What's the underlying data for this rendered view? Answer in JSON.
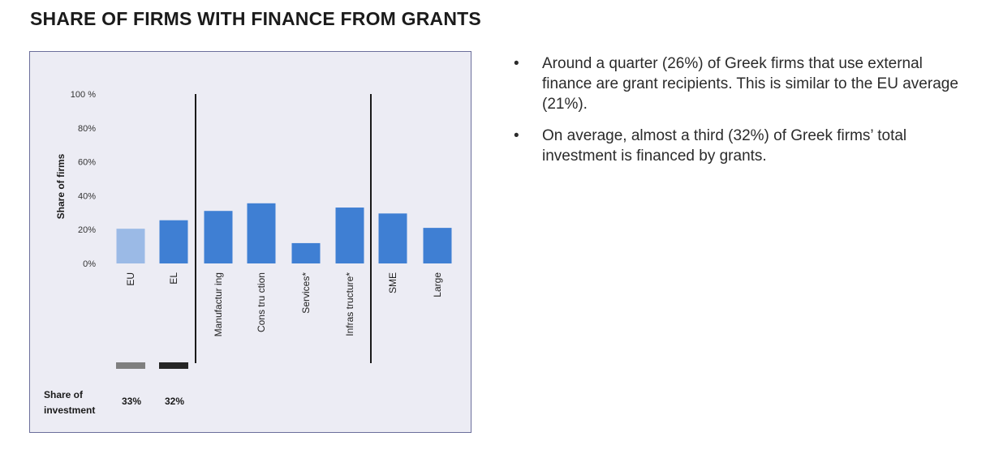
{
  "title": "SHARE OF FIRMS WITH FINANCE FROM GRANTS",
  "bullets": [
    "Around a quarter (26%) of Greek firms that use external finance are grant recipients. This is similar to the EU average (21%).",
    "On average, almost a third (32%) of Greek firms’ total investment is financed by grants."
  ],
  "chart_data": {
    "type": "bar",
    "ylabel": "Share of firms",
    "ylim": [
      0,
      100
    ],
    "yticks": [
      0,
      20,
      40,
      60,
      80,
      100
    ],
    "ytick_labels": [
      "0%",
      "20%",
      "40%",
      "60%",
      "80%",
      "100 %"
    ],
    "categories": [
      "EU",
      "EL",
      "Manufacturing",
      "Construction",
      "Services*",
      "Infrastructure*",
      "SME",
      "Large"
    ],
    "category_labels": [
      "EU",
      "EL",
      "Manufactur ing",
      "Cons tru ction",
      "Services*",
      "Infras tructure*",
      "SME",
      "Large"
    ],
    "values": [
      20.5,
      25.5,
      31,
      35.5,
      12,
      33,
      29.5,
      21
    ],
    "bar_colors": [
      "#9bbae6",
      "#3f7fd3",
      "#3f7fd3",
      "#3f7fd3",
      "#3f7fd3",
      "#3f7fd3",
      "#3f7fd3",
      "#3f7fd3"
    ],
    "separators_after": [
      "EL",
      "Infrastructure*"
    ],
    "investment_share": {
      "label": "Share of investment",
      "items": [
        {
          "category": "EU",
          "value": "33%",
          "color": "#7f7f7f"
        },
        {
          "category": "EL",
          "value": "32%",
          "color": "#262626"
        }
      ]
    },
    "grid": false,
    "legend": "none"
  }
}
